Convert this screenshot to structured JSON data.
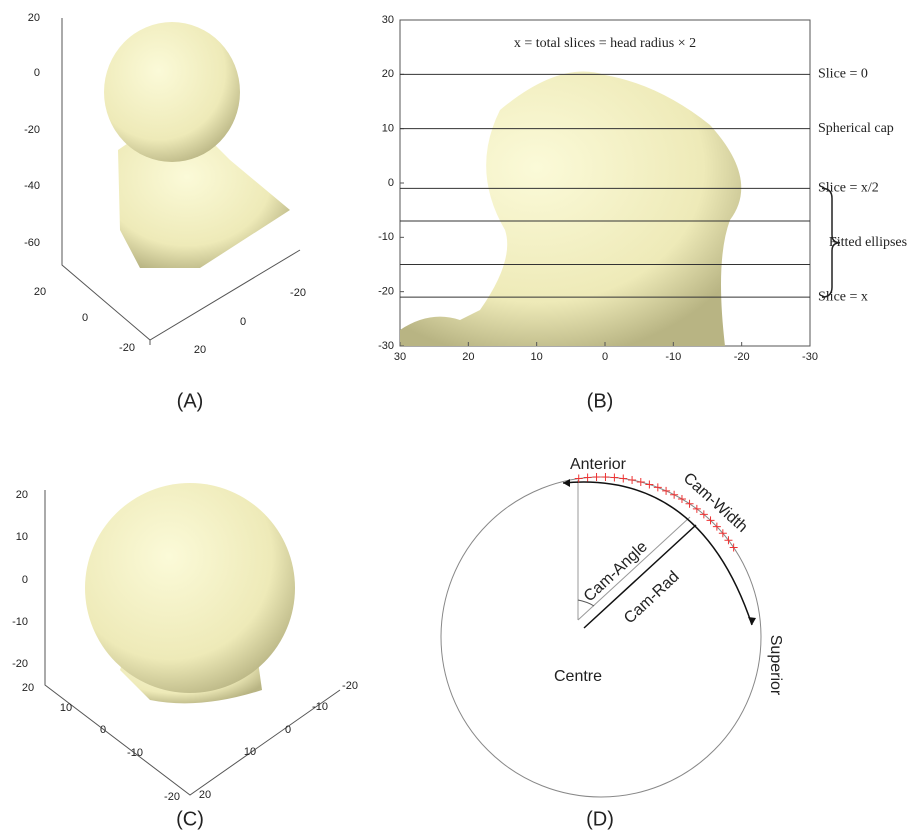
{
  "panel_a": {
    "label": "(A)",
    "z_ticks": [
      "20",
      "0",
      "-20",
      "-40",
      "-60"
    ],
    "x_ticks": [
      "20",
      "0",
      "-20"
    ],
    "y_ticks": [
      "-20",
      "0",
      "20"
    ]
  },
  "panel_b": {
    "label": "(B)",
    "title": "x = total slices = head radius × 2",
    "xlim": [
      30,
      -30
    ],
    "ylim": [
      -30,
      30
    ],
    "xticks": [
      30,
      20,
      10,
      0,
      -10,
      -20,
      -30
    ],
    "yticks": [
      30,
      20,
      10,
      0,
      -10,
      -20,
      -30
    ],
    "slices": [
      {
        "y": 20,
        "label": "Slice = 0"
      },
      {
        "y": 10,
        "label": "Spherical cap"
      },
      {
        "y": -1,
        "label": "Slice = x/2"
      },
      {
        "y": -7
      },
      {
        "y": -15
      },
      {
        "y": -21,
        "label": "Slice = x"
      }
    ],
    "brace_label": "Fitted ellipses"
  },
  "panel_c": {
    "label": "(C)",
    "z_ticks": [
      "20",
      "10",
      "0",
      "-10",
      "-20"
    ],
    "x_ticks": [
      "20",
      "10",
      "0",
      "-10",
      "-20"
    ],
    "y_ticks": [
      "-20",
      "-10",
      "0",
      "10",
      "20"
    ]
  },
  "panel_d": {
    "label": "(D)",
    "anterior": "Anterior",
    "superior": "Superior",
    "cam_width": "Cam-Width",
    "cam_angle": "Cam-Angle",
    "cam_rad": "Cam-Rad",
    "centre": "Centre"
  }
}
